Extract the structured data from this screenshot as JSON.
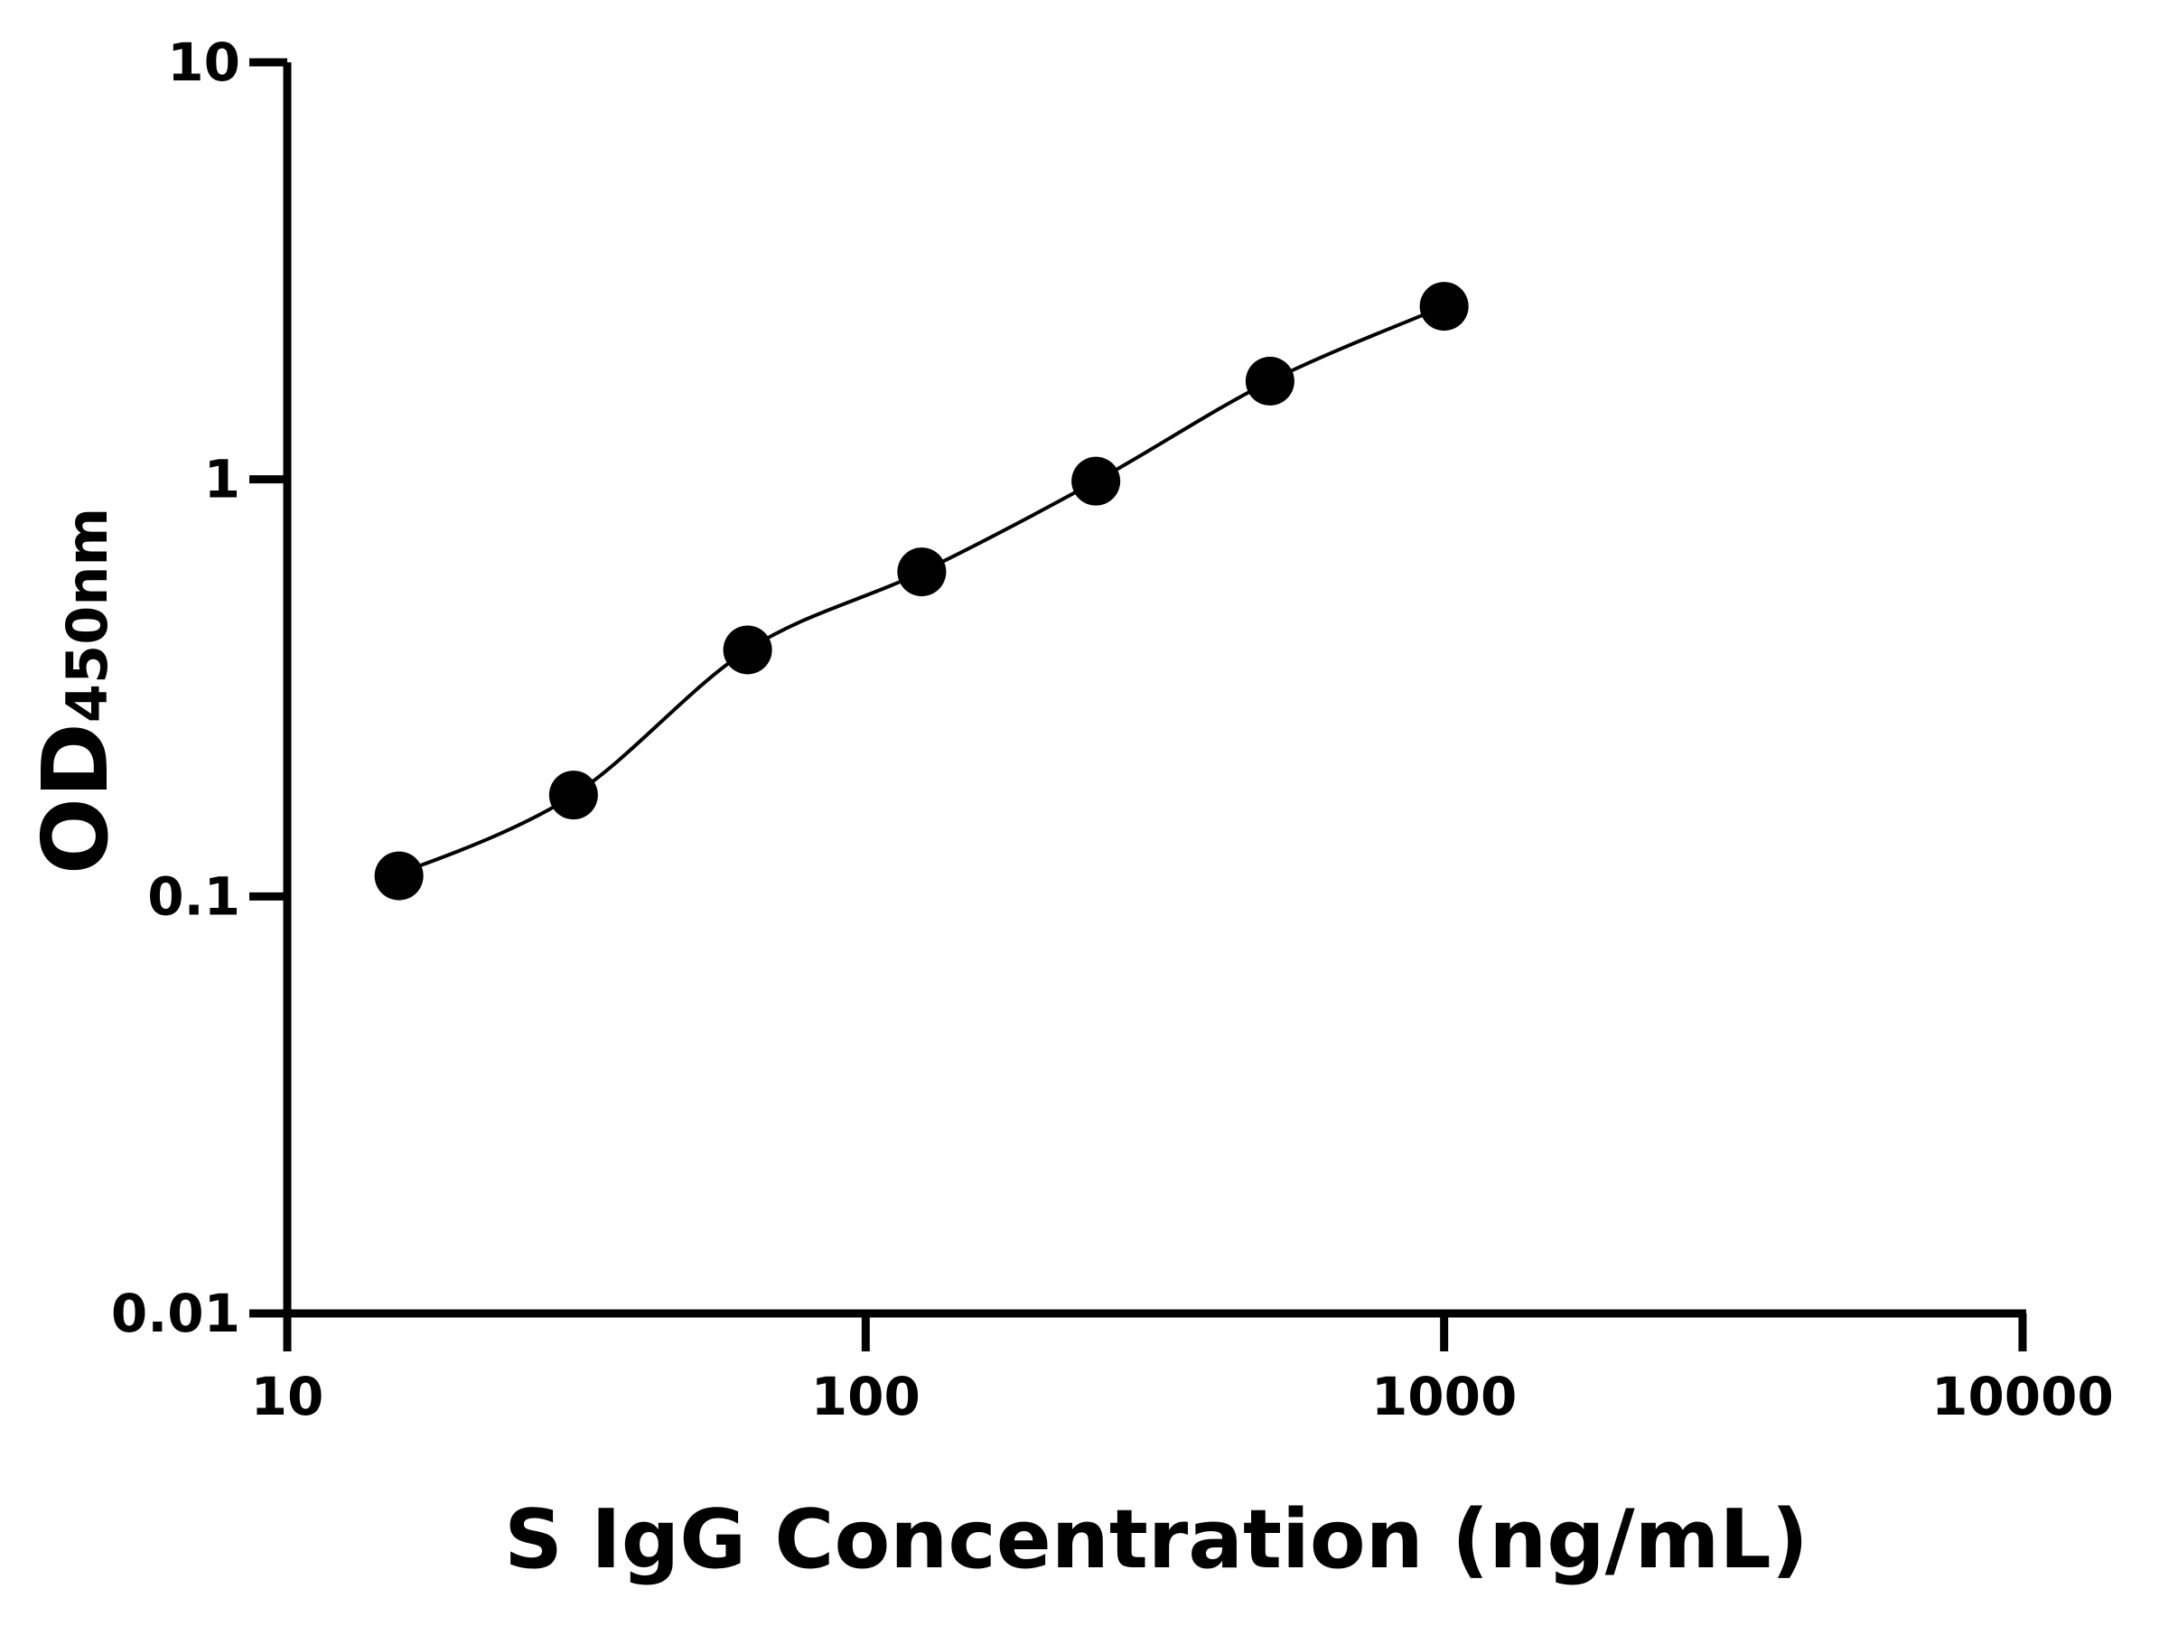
{
  "chart_data": {
    "type": "scatter",
    "xlabel": "S IgG Concentration (ng/mL)",
    "ylabel_main": "OD",
    "ylabel_sub": "450nm",
    "x_scale": "log",
    "y_scale": "log",
    "xlim": [
      10,
      10000
    ],
    "ylim": [
      0.01,
      10
    ],
    "x_ticks": [
      "10",
      "100",
      "1000",
      "10000"
    ],
    "y_ticks": [
      "0.01",
      "0.1",
      "1",
      "10"
    ],
    "grid": false,
    "fit_curve": true,
    "color": "#000000",
    "points": [
      {
        "x": 15.6,
        "y": 0.112
      },
      {
        "x": 31.25,
        "y": 0.175
      },
      {
        "x": 62.5,
        "y": 0.39
      },
      {
        "x": 125,
        "y": 0.6
      },
      {
        "x": 250,
        "y": 0.99
      },
      {
        "x": 500,
        "y": 1.72
      },
      {
        "x": 1000,
        "y": 2.6
      }
    ]
  }
}
